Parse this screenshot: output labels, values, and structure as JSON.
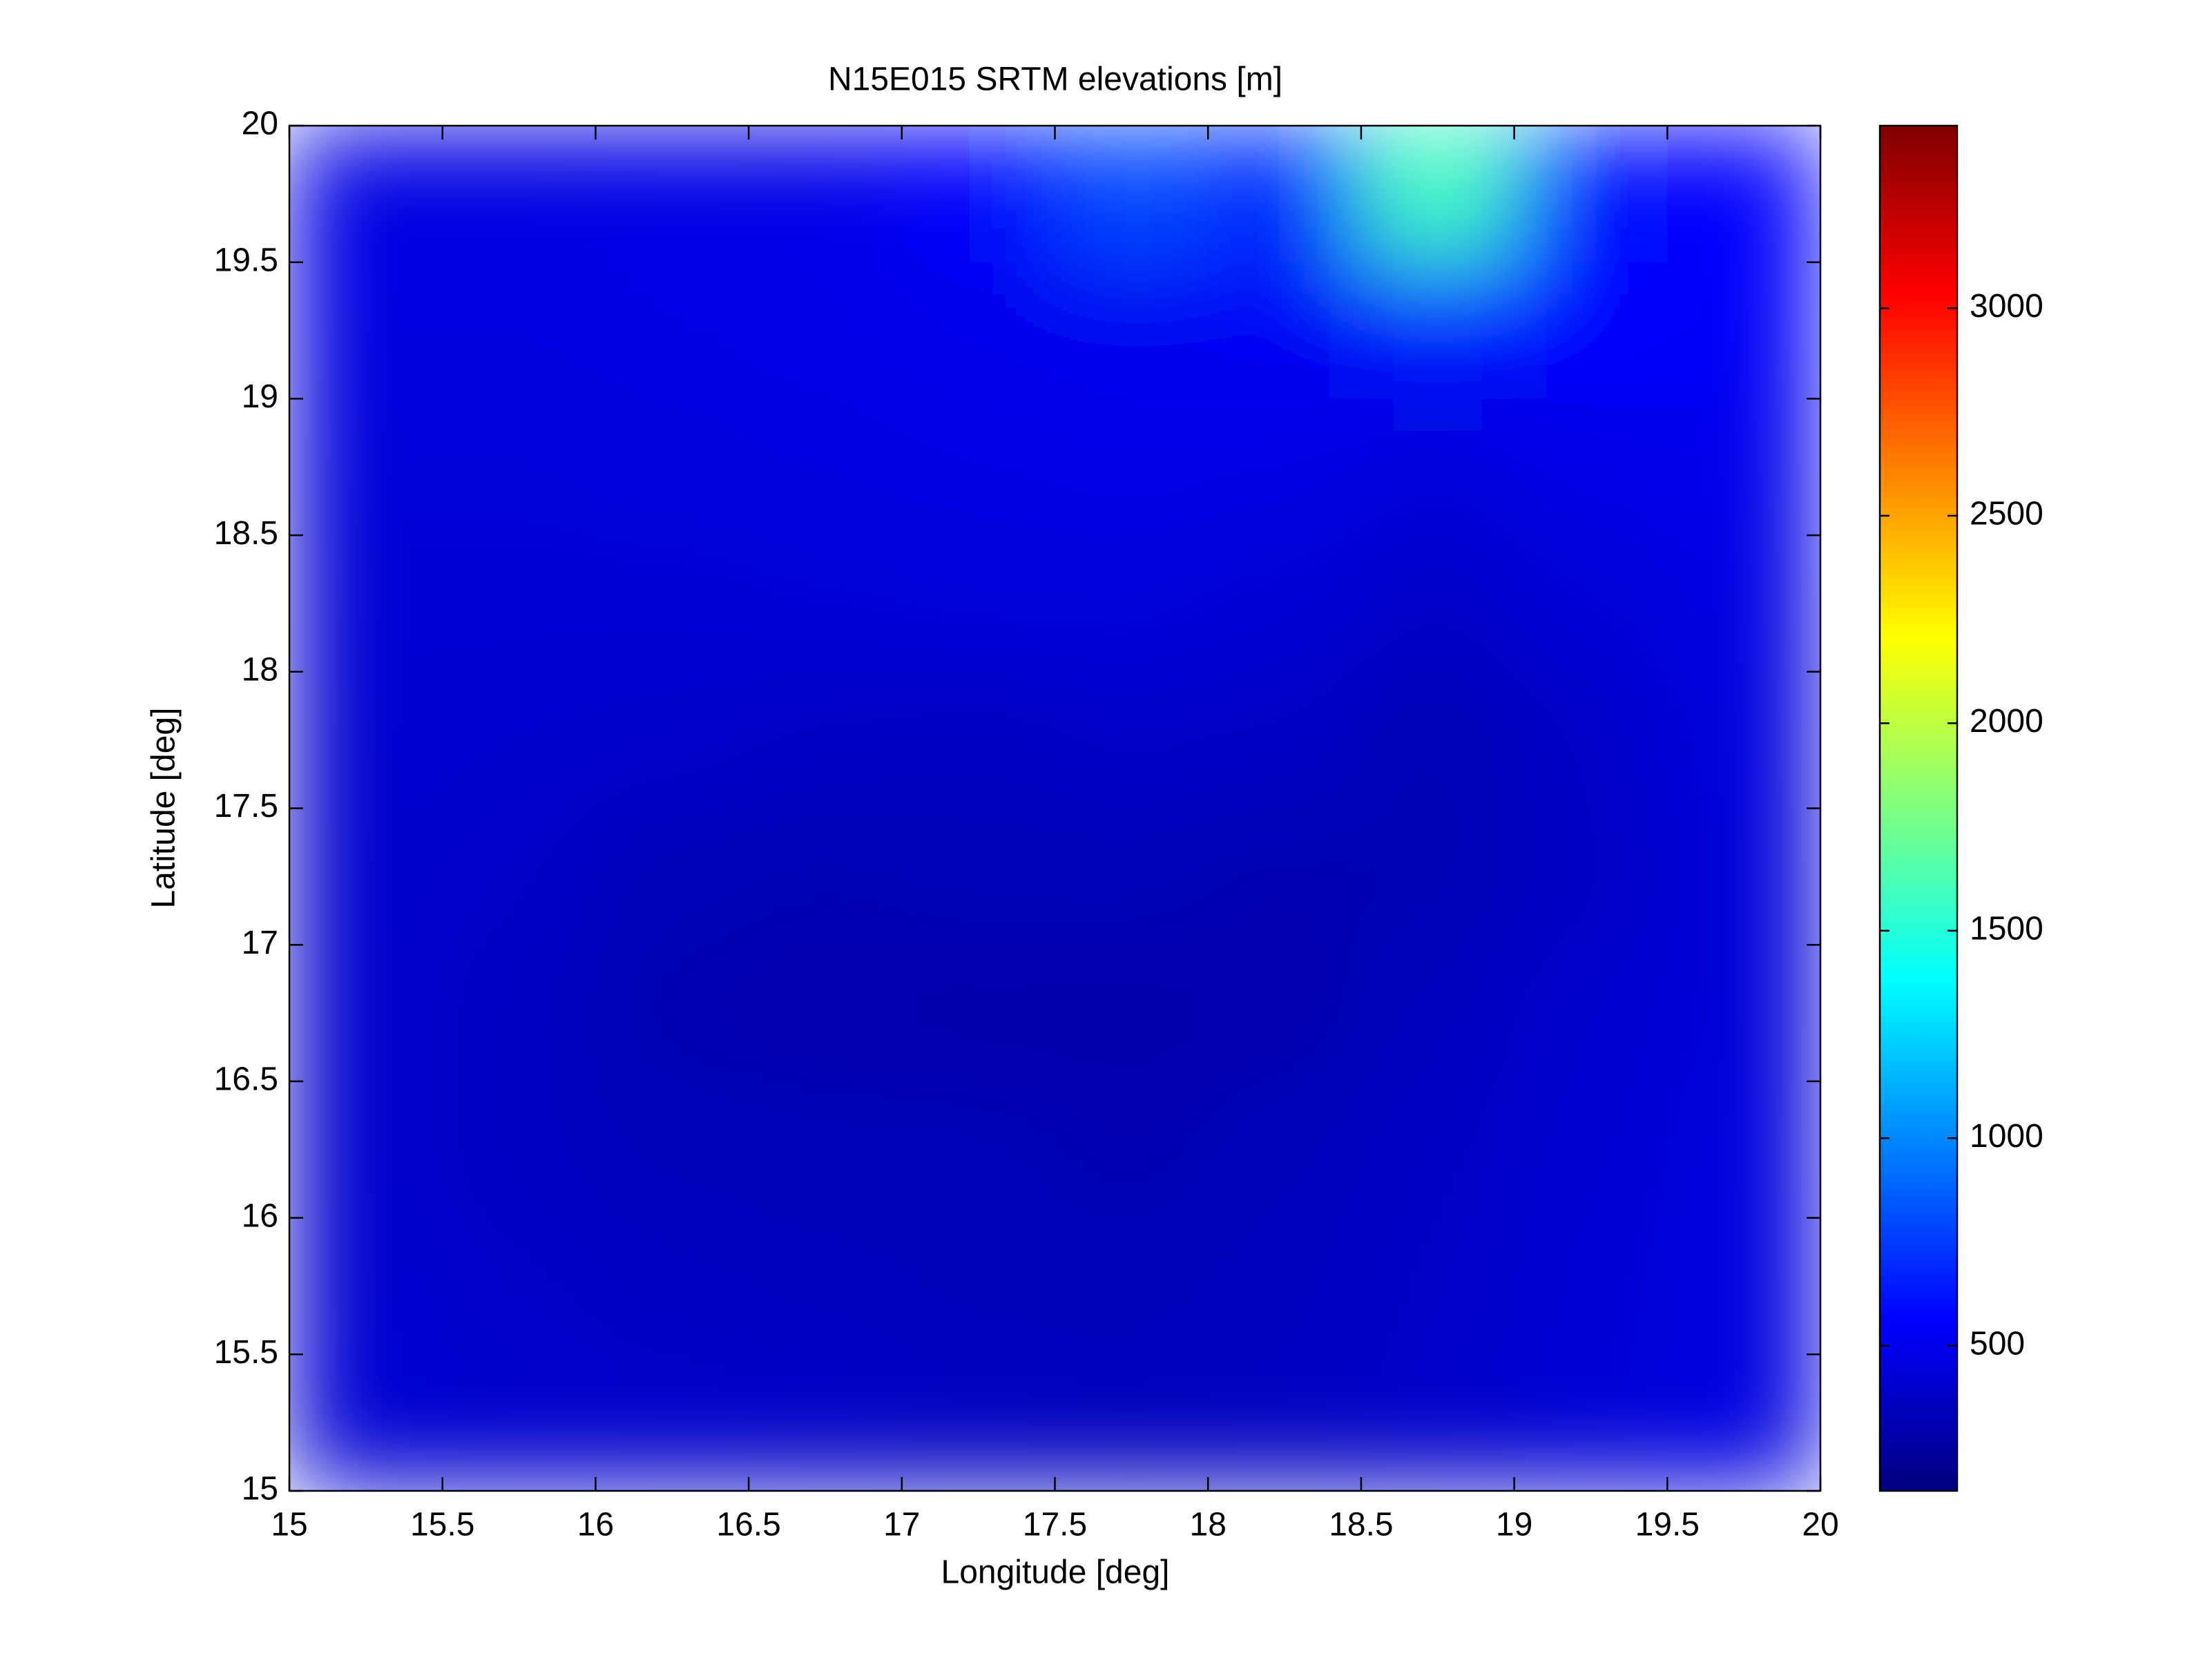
{
  "chart_data": {
    "type": "heatmap",
    "title": "N15E015 SRTM elevations [m]",
    "xlabel": "Longitude [deg]",
    "ylabel": "Latitude [deg]",
    "xlim": [
      15,
      20
    ],
    "ylim": [
      15,
      20
    ],
    "xticks": [
      15,
      15.5,
      16,
      16.5,
      17,
      17.5,
      18,
      18.5,
      19,
      19.5,
      20
    ],
    "yticks": [
      15,
      15.5,
      16,
      16.5,
      17,
      17.5,
      18,
      18.5,
      19,
      19.5,
      20
    ],
    "colormap": "jet",
    "clim": [
      150,
      3440
    ],
    "cticks": [
      500,
      1000,
      1500,
      2000,
      2500,
      3000
    ],
    "z": [
      [
        470,
        470,
        480,
        490,
        560,
        800,
        700,
        1600,
        600,
        560
      ],
      [
        460,
        460,
        470,
        480,
        500,
        520,
        530,
        620,
        560,
        540
      ],
      [
        440,
        440,
        450,
        460,
        470,
        480,
        470,
        440,
        480,
        500
      ],
      [
        420,
        420,
        420,
        430,
        440,
        440,
        420,
        380,
        430,
        470
      ],
      [
        410,
        400,
        390,
        370,
        360,
        380,
        370,
        320,
        380,
        450
      ],
      [
        400,
        380,
        330,
        320,
        330,
        330,
        310,
        320,
        370,
        440
      ],
      [
        400,
        360,
        310,
        300,
        290,
        290,
        300,
        350,
        400,
        440
      ],
      [
        400,
        360,
        340,
        330,
        330,
        310,
        340,
        370,
        410,
        450
      ],
      [
        410,
        380,
        360,
        350,
        340,
        340,
        350,
        380,
        420,
        460
      ],
      [
        420,
        400,
        390,
        380,
        360,
        350,
        360,
        390,
        430,
        460
      ]
    ]
  }
}
